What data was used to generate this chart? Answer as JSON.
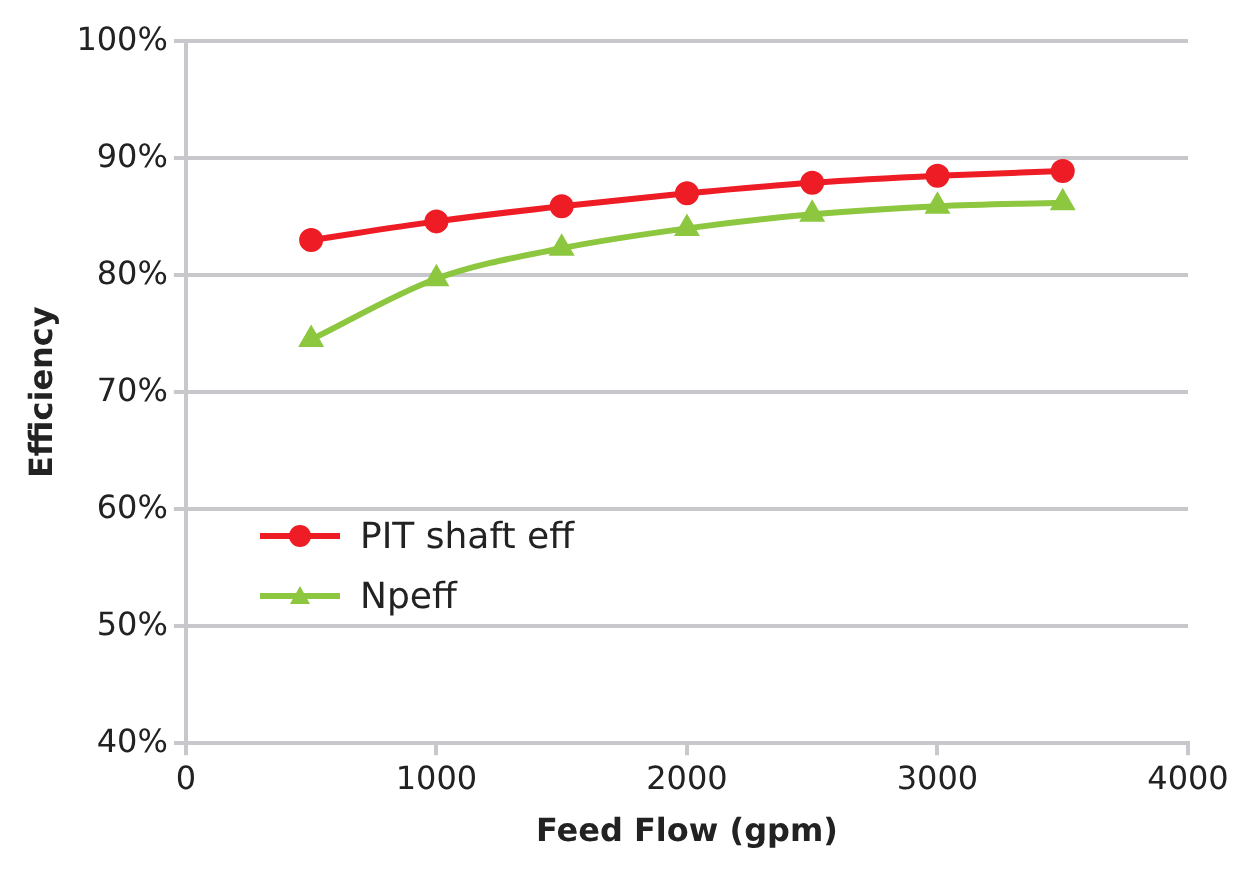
{
  "chart_data": {
    "type": "line",
    "xlabel": "Feed Flow (gpm)",
    "ylabel": "Efficiency",
    "x": [
      500,
      1000,
      1500,
      2000,
      2500,
      3000,
      3500
    ],
    "series": [
      {
        "name": "PIT shaft eff",
        "color": "#ee1c25",
        "marker": "circle",
        "values": [
          83.0,
          84.6,
          85.9,
          87.0,
          87.9,
          88.5,
          88.9
        ]
      },
      {
        "name": "Npeff",
        "color": "#8dc63f",
        "marker": "triangle",
        "values": [
          74.5,
          79.7,
          82.3,
          84.0,
          85.2,
          85.9,
          86.2
        ]
      }
    ],
    "xlim": [
      0,
      4000
    ],
    "xticks": [
      0,
      1000,
      2000,
      3000,
      4000
    ],
    "ylim": [
      40,
      100
    ],
    "yticks": [
      {
        "value": 40,
        "label": "40%"
      },
      {
        "value": 50,
        "label": "50%"
      },
      {
        "value": 60,
        "label": "60%"
      },
      {
        "value": 70,
        "label": "70%"
      },
      {
        "value": 80,
        "label": "80%"
      },
      {
        "value": 90,
        "label": "90%"
      },
      {
        "value": 100,
        "label": "100%"
      }
    ],
    "grid": "y",
    "legend": "center left",
    "line_style": "solid"
  }
}
